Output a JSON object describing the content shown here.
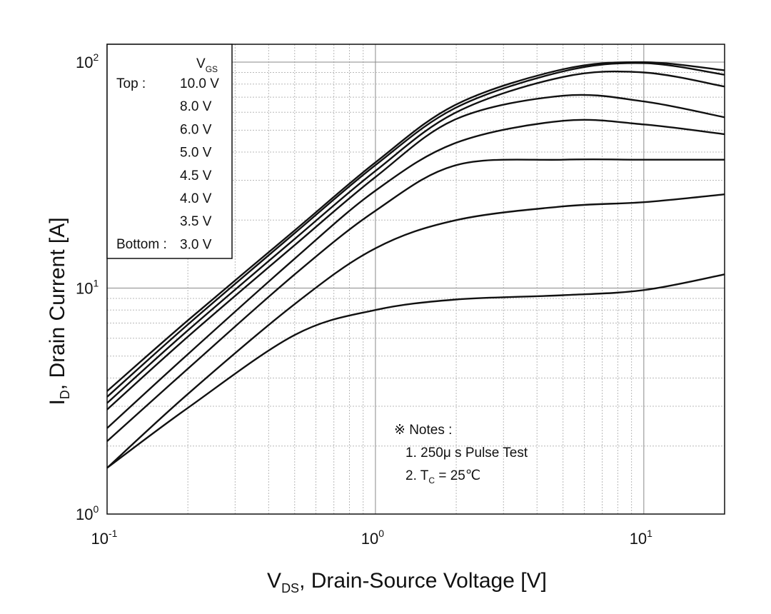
{
  "chart_data": {
    "type": "line",
    "xscale": "log",
    "yscale": "log",
    "xlim": [
      0.1,
      20
    ],
    "ylim": [
      1,
      120
    ],
    "x_ticks": [
      {
        "value": 0.1,
        "base": "10",
        "exp": "-1"
      },
      {
        "value": 1,
        "base": "10",
        "exp": "0"
      },
      {
        "value": 10,
        "base": "10",
        "exp": "1"
      }
    ],
    "y_ticks": [
      {
        "value": 1,
        "base": "10",
        "exp": "0"
      },
      {
        "value": 10,
        "base": "10",
        "exp": "1"
      },
      {
        "value": 100,
        "base": "10",
        "exp": "2"
      }
    ],
    "xlabel": {
      "main": "V",
      "sub": "DS",
      "rest": ", Drain-Source Voltage [V]"
    },
    "ylabel": {
      "main": "I",
      "sub": "D",
      "rest": ", Drain Current [A]"
    },
    "grid": true,
    "legend": {
      "header": {
        "main": "V",
        "sub": "GS"
      },
      "top_label": "Top :",
      "bottom_label": "Bottom :",
      "entries": [
        "10.0 V",
        "8.0 V",
        "6.0 V",
        "5.0 V",
        "4.5 V",
        "4.0 V",
        "3.5 V",
        "3.0 V"
      ]
    },
    "notes": {
      "title": "※ Notes :",
      "line1": "1. 250μ s Pulse Test",
      "line2_pre": "2. T",
      "line2_sub": "C",
      "line2_post": " = 25℃"
    },
    "x": [
      0.1,
      0.2,
      0.5,
      1,
      2,
      5,
      10,
      20
    ],
    "series": [
      {
        "name": "10.0 V",
        "values": [
          3.5,
          7.2,
          18,
          36,
          65,
          93,
          100,
          92
        ]
      },
      {
        "name": "8.0 V",
        "values": [
          3.3,
          6.9,
          17.5,
          35,
          63,
          91,
          99,
          88
        ]
      },
      {
        "name": "6.0 V",
        "values": [
          3.1,
          6.5,
          16.5,
          33,
          60,
          86,
          90,
          78
        ]
      },
      {
        "name": "5.0 V",
        "values": [
          2.9,
          6.1,
          15.5,
          31,
          56,
          71,
          67,
          57
        ]
      },
      {
        "name": "4.5 V",
        "values": [
          2.4,
          5.1,
          13.5,
          27,
          44,
          55,
          53,
          48
        ]
      },
      {
        "name": "4.0 V",
        "values": [
          2.1,
          4.4,
          11.5,
          22,
          35,
          37,
          37,
          37
        ]
      },
      {
        "name": "3.5 V",
        "values": [
          1.6,
          3.4,
          8.5,
          15,
          20,
          23,
          24,
          26
        ]
      },
      {
        "name": "3.0 V",
        "values": [
          1.6,
          2.95,
          6.2,
          8,
          8.9,
          9.3,
          9.8,
          11.5
        ]
      }
    ]
  }
}
